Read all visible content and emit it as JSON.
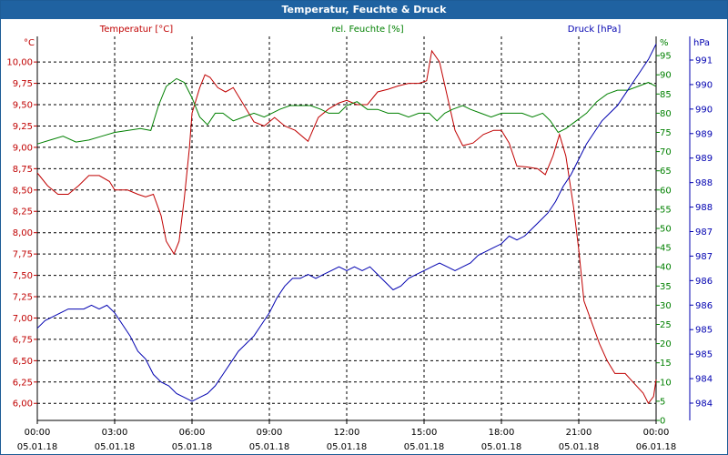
{
  "window": {
    "title": "Temperatur, Feuchte & Druck"
  },
  "colors": {
    "temperature": "#c00000",
    "humidity": "#008000",
    "pressure": "#0000b0",
    "grid": "#000000",
    "titlebar": "#1f62a1"
  },
  "chart_data": {
    "type": "line",
    "grid": true,
    "legend": [
      {
        "name": "Temperatur [°C]",
        "color": "#c00000"
      },
      {
        "name": "rel. Feuchte [%]",
        "color": "#008000"
      },
      {
        "name": "Druck [hPa]",
        "color": "#0000b0"
      }
    ],
    "x": {
      "ticks": [
        0,
        3,
        6,
        9,
        12,
        15,
        18,
        21,
        24
      ],
      "tick_labels": [
        [
          "00:00",
          "05.01.18"
        ],
        [
          "03:00",
          "05.01.18"
        ],
        [
          "06:00",
          "05.01.18"
        ],
        [
          "09:00",
          "05.01.18"
        ],
        [
          "12:00",
          "05.01.18"
        ],
        [
          "15:00",
          "05.01.18"
        ],
        [
          "18:00",
          "05.01.18"
        ],
        [
          "21:00",
          "05.01.18"
        ],
        [
          "00:00",
          "06.01.18"
        ]
      ],
      "range": [
        0,
        24
      ]
    },
    "axes": {
      "temperature": {
        "unit": "°C",
        "range": [
          5.8,
          10.3
        ],
        "ticks": [
          6.0,
          6.25,
          6.5,
          6.75,
          7.0,
          7.25,
          7.5,
          7.75,
          8.0,
          8.25,
          8.5,
          8.75,
          9.0,
          9.25,
          9.5,
          9.75,
          10.0
        ],
        "tick_labels": [
          "6,00",
          "6,25",
          "6,50",
          "6,75",
          "7,00",
          "7,25",
          "7,50",
          "7,75",
          "8,00",
          "8,25",
          "8,50",
          "8,75",
          "9,00",
          "9,25",
          "9,50",
          "9,75",
          "10,00"
        ]
      },
      "humidity": {
        "unit": "%",
        "range": [
          0,
          100
        ],
        "ticks": [
          0,
          5,
          10,
          15,
          20,
          25,
          30,
          35,
          40,
          45,
          50,
          55,
          60,
          65,
          70,
          75,
          80,
          85,
          90,
          95
        ],
        "tick_labels": [
          "0",
          "5",
          "10",
          "15",
          "20",
          "25",
          "30",
          "35",
          "40",
          "45",
          "50",
          "55",
          "60",
          "65",
          "70",
          "75",
          "80",
          "85",
          "90",
          "95"
        ]
      },
      "pressure": {
        "unit": "hPa",
        "tick_labels": [
          "984",
          "984",
          "985",
          "985",
          "986",
          "986",
          "987",
          "987",
          "988",
          "988",
          "989",
          "989",
          "990",
          "990",
          "991"
        ]
      }
    },
    "series": [
      {
        "name": "Temperatur [°C]",
        "axis": "temperature",
        "points": [
          [
            0,
            8.7
          ],
          [
            0.4,
            8.55
          ],
          [
            0.8,
            8.45
          ],
          [
            1.2,
            8.45
          ],
          [
            1.6,
            8.55
          ],
          [
            2.0,
            8.67
          ],
          [
            2.4,
            8.67
          ],
          [
            2.8,
            8.6
          ],
          [
            3.0,
            8.5
          ],
          [
            3.5,
            8.5
          ],
          [
            3.9,
            8.45
          ],
          [
            4.2,
            8.42
          ],
          [
            4.5,
            8.45
          ],
          [
            4.8,
            8.2
          ],
          [
            5.0,
            7.9
          ],
          [
            5.3,
            7.75
          ],
          [
            5.5,
            7.9
          ],
          [
            5.7,
            8.4
          ],
          [
            5.9,
            9.0
          ],
          [
            6.0,
            9.4
          ],
          [
            6.3,
            9.7
          ],
          [
            6.5,
            9.85
          ],
          [
            6.7,
            9.82
          ],
          [
            7.0,
            9.7
          ],
          [
            7.3,
            9.65
          ],
          [
            7.6,
            9.7
          ],
          [
            8.0,
            9.5
          ],
          [
            8.4,
            9.3
          ],
          [
            8.8,
            9.25
          ],
          [
            9.2,
            9.35
          ],
          [
            9.6,
            9.25
          ],
          [
            10.0,
            9.2
          ],
          [
            10.5,
            9.07
          ],
          [
            10.9,
            9.35
          ],
          [
            11.3,
            9.45
          ],
          [
            11.7,
            9.52
          ],
          [
            12.0,
            9.55
          ],
          [
            12.4,
            9.5
          ],
          [
            12.8,
            9.5
          ],
          [
            13.2,
            9.65
          ],
          [
            13.6,
            9.68
          ],
          [
            14.0,
            9.72
          ],
          [
            14.4,
            9.75
          ],
          [
            14.8,
            9.75
          ],
          [
            15.1,
            9.78
          ],
          [
            15.3,
            10.13
          ],
          [
            15.6,
            10.0
          ],
          [
            15.9,
            9.6
          ],
          [
            16.2,
            9.2
          ],
          [
            16.5,
            9.02
          ],
          [
            16.9,
            9.05
          ],
          [
            17.3,
            9.15
          ],
          [
            17.7,
            9.2
          ],
          [
            18.0,
            9.2
          ],
          [
            18.3,
            9.05
          ],
          [
            18.6,
            8.78
          ],
          [
            19.0,
            8.77
          ],
          [
            19.4,
            8.75
          ],
          [
            19.7,
            8.68
          ],
          [
            20.0,
            8.9
          ],
          [
            20.25,
            9.15
          ],
          [
            20.5,
            8.9
          ],
          [
            20.8,
            8.3
          ],
          [
            21.0,
            7.8
          ],
          [
            21.2,
            7.2
          ],
          [
            21.5,
            6.95
          ],
          [
            21.8,
            6.7
          ],
          [
            22.1,
            6.5
          ],
          [
            22.4,
            6.35
          ],
          [
            22.8,
            6.35
          ],
          [
            23.1,
            6.25
          ],
          [
            23.5,
            6.12
          ],
          [
            23.7,
            6.0
          ],
          [
            23.9,
            6.08
          ],
          [
            24.0,
            6.28
          ]
        ]
      },
      {
        "name": "rel. Feuchte [%]",
        "axis": "humidity",
        "points": [
          [
            0,
            72
          ],
          [
            0.5,
            73
          ],
          [
            1.0,
            74
          ],
          [
            1.5,
            72.5
          ],
          [
            2.0,
            73
          ],
          [
            2.5,
            74
          ],
          [
            3.0,
            75
          ],
          [
            3.5,
            75.5
          ],
          [
            4.0,
            76
          ],
          [
            4.4,
            75.5
          ],
          [
            4.7,
            82
          ],
          [
            5.0,
            87
          ],
          [
            5.4,
            89
          ],
          [
            5.7,
            88
          ],
          [
            6.0,
            84
          ],
          [
            6.3,
            79
          ],
          [
            6.6,
            77
          ],
          [
            6.9,
            80
          ],
          [
            7.2,
            80
          ],
          [
            7.6,
            78
          ],
          [
            8.0,
            79
          ],
          [
            8.4,
            80
          ],
          [
            8.8,
            79
          ],
          [
            9.1,
            80
          ],
          [
            9.4,
            81
          ],
          [
            9.8,
            82
          ],
          [
            10.2,
            82
          ],
          [
            10.6,
            82
          ],
          [
            11.0,
            81
          ],
          [
            11.3,
            80
          ],
          [
            11.7,
            80
          ],
          [
            12.0,
            82
          ],
          [
            12.4,
            83
          ],
          [
            12.8,
            81
          ],
          [
            13.2,
            81
          ],
          [
            13.6,
            80
          ],
          [
            14.0,
            80
          ],
          [
            14.4,
            79
          ],
          [
            14.8,
            80
          ],
          [
            15.2,
            80
          ],
          [
            15.5,
            78
          ],
          [
            15.8,
            80
          ],
          [
            16.1,
            81
          ],
          [
            16.5,
            82
          ],
          [
            16.8,
            81
          ],
          [
            17.2,
            80
          ],
          [
            17.6,
            79
          ],
          [
            18.0,
            80
          ],
          [
            18.4,
            80
          ],
          [
            18.8,
            80
          ],
          [
            19.2,
            79
          ],
          [
            19.6,
            80
          ],
          [
            19.9,
            78
          ],
          [
            20.2,
            75
          ],
          [
            20.5,
            76
          ],
          [
            20.9,
            78
          ],
          [
            21.3,
            80
          ],
          [
            21.7,
            83
          ],
          [
            22.1,
            85
          ],
          [
            22.5,
            86
          ],
          [
            22.9,
            86
          ],
          [
            23.3,
            87
          ],
          [
            23.7,
            88
          ],
          [
            24.0,
            87
          ]
        ]
      },
      {
        "name": "Druck [hPa]",
        "axis": "pressure",
        "points": [
          [
            0,
            24
          ],
          [
            0.3,
            26
          ],
          [
            0.6,
            27
          ],
          [
            0.9,
            28
          ],
          [
            1.2,
            29
          ],
          [
            1.5,
            29
          ],
          [
            1.8,
            29
          ],
          [
            2.1,
            30
          ],
          [
            2.4,
            29
          ],
          [
            2.7,
            30
          ],
          [
            3.0,
            28
          ],
          [
            3.3,
            25
          ],
          [
            3.6,
            22
          ],
          [
            3.9,
            18
          ],
          [
            4.2,
            16
          ],
          [
            4.5,
            12
          ],
          [
            4.8,
            10
          ],
          [
            5.1,
            9
          ],
          [
            5.4,
            7
          ],
          [
            5.7,
            6
          ],
          [
            6.0,
            5
          ],
          [
            6.3,
            6
          ],
          [
            6.6,
            7
          ],
          [
            6.9,
            9
          ],
          [
            7.2,
            12
          ],
          [
            7.5,
            15
          ],
          [
            7.8,
            18
          ],
          [
            8.1,
            20
          ],
          [
            8.4,
            22
          ],
          [
            8.7,
            25
          ],
          [
            9.0,
            28
          ],
          [
            9.3,
            32
          ],
          [
            9.6,
            35
          ],
          [
            9.9,
            37
          ],
          [
            10.2,
            37
          ],
          [
            10.5,
            38
          ],
          [
            10.8,
            37
          ],
          [
            11.1,
            38
          ],
          [
            11.4,
            39
          ],
          [
            11.7,
            40
          ],
          [
            12.0,
            39
          ],
          [
            12.3,
            40
          ],
          [
            12.6,
            39
          ],
          [
            12.9,
            40
          ],
          [
            13.2,
            38
          ],
          [
            13.5,
            36
          ],
          [
            13.8,
            34
          ],
          [
            14.1,
            35
          ],
          [
            14.4,
            37
          ],
          [
            14.7,
            38
          ],
          [
            15.0,
            39
          ],
          [
            15.3,
            40
          ],
          [
            15.6,
            41
          ],
          [
            15.9,
            40
          ],
          [
            16.2,
            39
          ],
          [
            16.5,
            40
          ],
          [
            16.8,
            41
          ],
          [
            17.1,
            43
          ],
          [
            17.4,
            44
          ],
          [
            17.7,
            45
          ],
          [
            18.0,
            46
          ],
          [
            18.3,
            48
          ],
          [
            18.6,
            47
          ],
          [
            18.9,
            48
          ],
          [
            19.2,
            50
          ],
          [
            19.5,
            52
          ],
          [
            19.8,
            54
          ],
          [
            20.1,
            57
          ],
          [
            20.4,
            61
          ],
          [
            20.7,
            64
          ],
          [
            21.0,
            68
          ],
          [
            21.3,
            72
          ],
          [
            21.6,
            75
          ],
          [
            21.9,
            78
          ],
          [
            22.2,
            80
          ],
          [
            22.5,
            82
          ],
          [
            22.8,
            85
          ],
          [
            23.1,
            88
          ],
          [
            23.4,
            91
          ],
          [
            23.7,
            94
          ],
          [
            24.0,
            98
          ]
        ]
      }
    ]
  }
}
